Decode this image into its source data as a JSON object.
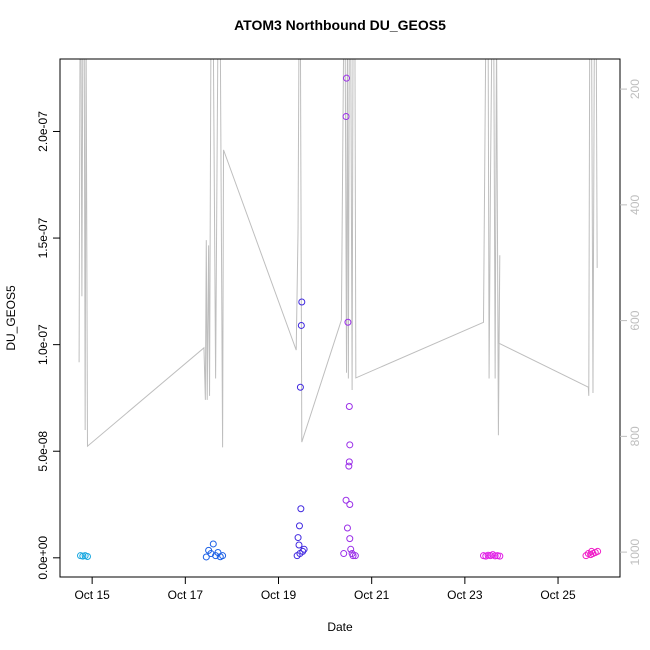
{
  "chart_data": {
    "type": "scatter",
    "title": "ATOM3 Northbound DU_GEOS5",
    "x_label": "Date",
    "y_label": "DU_GEOS5",
    "xlim": [
      14.31,
      26.33
    ],
    "ylim": [
      -9e-09,
      2.34e-07
    ],
    "y2lim": [
      1043,
      148
    ],
    "xticks": [
      {
        "value": 15,
        "label": "Oct 15"
      },
      {
        "value": 17,
        "label": "Oct 17"
      },
      {
        "value": 19,
        "label": "Oct 19"
      },
      {
        "value": 21,
        "label": "Oct 21"
      },
      {
        "value": 23,
        "label": "Oct 23"
      },
      {
        "value": 25,
        "label": "Oct 25"
      }
    ],
    "yticks": [
      {
        "value": 0,
        "label": "0.0e+00"
      },
      {
        "value": 5e-08,
        "label": "5.0e-08"
      },
      {
        "value": 1e-07,
        "label": "1.0e-07"
      },
      {
        "value": 1.5e-07,
        "label": "1.5e-07"
      },
      {
        "value": 2e-07,
        "label": "2.0e-07"
      }
    ],
    "y2ticks": [
      200,
      400,
      600,
      800,
      1000
    ],
    "series": [
      {
        "type": "line",
        "axis": "y2",
        "color": "#bebebe",
        "x": [
          14.72,
          14.74,
          14.76,
          14.78,
          14.8,
          14.83,
          14.85,
          14.87,
          14.9,
          17.4,
          17.43,
          17.45,
          17.47,
          17.5,
          17.52,
          17.55,
          17.6,
          17.65,
          17.7,
          17.75,
          17.8,
          17.82,
          19.38,
          19.42,
          19.44,
          19.47,
          19.5,
          20.35,
          20.4,
          20.43,
          20.46,
          20.48,
          20.5,
          20.52,
          20.55,
          20.58,
          20.6,
          20.64,
          20.66,
          23.4,
          23.45,
          23.5,
          23.52,
          23.55,
          23.58,
          23.62,
          23.65,
          23.68,
          23.72,
          23.75,
          23.73,
          25.65,
          25.66,
          25.68,
          25.72,
          25.75,
          25.78,
          25.82,
          25.84
        ],
        "values": [
          672,
          100,
          100,
          558,
          100,
          100,
          789,
          100,
          817,
          647,
          737,
          461,
          737,
          470,
          730,
          100,
          100,
          700,
          100,
          100,
          819,
          305,
          651,
          440,
          100,
          100,
          810,
          599,
          100,
          100,
          690,
          100,
          700,
          100,
          100,
          720,
          100,
          100,
          699,
          603,
          100,
          100,
          700,
          357,
          100,
          100,
          700,
          100,
          798,
          487,
          639,
          715,
          730,
          100,
          100,
          725,
          100,
          100,
          509
        ]
      },
      {
        "type": "scatter",
        "color": "#1aa8e0",
        "x": [
          14.75,
          14.8,
          14.85,
          14.9
        ],
        "values": [
          1e-09,
          8e-10,
          1e-09,
          6e-10
        ]
      },
      {
        "type": "scatter",
        "color": "#1a5fe6",
        "x": [
          17.45,
          17.5,
          17.55,
          17.6,
          17.65,
          17.7,
          17.75,
          17.8
        ],
        "values": [
          4e-10,
          3.5e-09,
          2e-09,
          6.5e-09,
          1e-09,
          2.5e-09,
          5e-10,
          1e-09
        ]
      },
      {
        "type": "scatter",
        "color": "#4028e0",
        "x": [
          19.4,
          19.42,
          19.44,
          19.45,
          19.46,
          19.47,
          19.48,
          19.49,
          19.5,
          19.52,
          19.55
        ],
        "values": [
          1e-09,
          9.5e-09,
          6e-09,
          1.5e-08,
          2e-09,
          8e-08,
          2.3e-08,
          1.09e-07,
          1.2e-07,
          3e-09,
          4e-09
        ]
      },
      {
        "type": "scatter",
        "color": "#9a2ee8",
        "x": [
          20.4,
          20.45,
          20.45,
          20.46,
          20.48,
          20.49,
          20.51,
          20.52,
          20.52,
          20.53,
          20.53,
          20.53,
          20.55,
          20.58,
          20.6,
          20.65
        ],
        "values": [
          2e-09,
          2.07e-07,
          2.7e-08,
          2.25e-07,
          1.4e-08,
          1.105e-07,
          4.3e-08,
          7.1e-08,
          4.5e-08,
          5.3e-08,
          2.5e-08,
          9e-09,
          4e-09,
          2e-09,
          1e-09,
          1e-09
        ]
      },
      {
        "type": "scatter",
        "color": "#e01ee6",
        "x": [
          23.4,
          23.45,
          23.5,
          23.55,
          23.6,
          23.65,
          23.7,
          23.75
        ],
        "values": [
          1e-09,
          8e-10,
          1.2e-09,
          1e-09,
          1.5e-09,
          9e-10,
          1e-09,
          8e-10
        ]
      },
      {
        "type": "scatter",
        "color": "#f01ec8",
        "x": [
          25.6,
          25.65,
          25.7,
          25.72,
          25.75,
          25.8,
          25.85
        ],
        "values": [
          1e-09,
          2e-09,
          1.5e-09,
          3e-09,
          2e-09,
          2.5e-09,
          3e-09
        ]
      }
    ]
  }
}
